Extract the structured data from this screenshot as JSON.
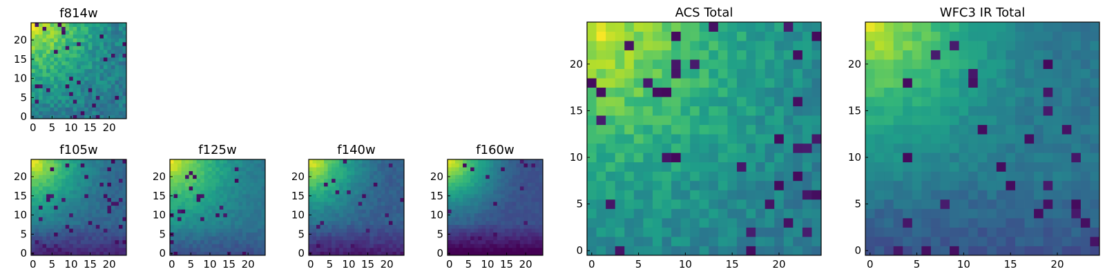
{
  "figure": {
    "background": "#ffffff"
  },
  "colormap": {
    "name": "viridis",
    "stops": [
      "#440154",
      "#482878",
      "#3e4a89",
      "#31688e",
      "#26828e",
      "#1f9e89",
      "#35b779",
      "#6ece58",
      "#b5de2b",
      "#fde725"
    ]
  },
  "chart_data": [
    {
      "type": "heatmap",
      "title": "f814w",
      "grid_size": 25,
      "xlim": [
        0,
        24
      ],
      "ylim": [
        0,
        24
      ],
      "x_ticks": [
        0,
        5,
        10,
        15,
        20
      ],
      "y_ticks": [
        0,
        5,
        10,
        15,
        20
      ],
      "value_range": [
        0,
        1
      ],
      "profile": {
        "corner": 0.95,
        "decay": 1.2,
        "floor": 0.4,
        "noise": 0.2,
        "dark_fraction": 0.04,
        "seed": 11
      }
    },
    {
      "type": "heatmap",
      "title": "f105w",
      "grid_size": 25,
      "xlim": [
        0,
        24
      ],
      "ylim": [
        0,
        24
      ],
      "x_ticks": [
        0,
        5,
        10,
        15,
        20
      ],
      "y_ticks": [
        0,
        5,
        10,
        15,
        20
      ],
      "value_range": [
        0,
        1
      ],
      "profile": {
        "corner": 0.97,
        "decay": 1.5,
        "floor": 0.33,
        "noise": 0.08,
        "bottom_dark": 0.22,
        "dark_fraction": 0.06,
        "seed": 23
      }
    },
    {
      "type": "heatmap",
      "title": "f125w",
      "grid_size": 25,
      "xlim": [
        0,
        24
      ],
      "ylim": [
        0,
        24
      ],
      "x_ticks": [
        0,
        5,
        10,
        15,
        20
      ],
      "y_ticks": [
        0,
        5,
        10,
        15,
        20
      ],
      "value_range": [
        0,
        1
      ],
      "profile": {
        "corner": 0.96,
        "decay": 1.4,
        "floor": 0.4,
        "noise": 0.08,
        "bottom_dark": 0.16,
        "dark_fraction": 0.04,
        "seed": 37
      }
    },
    {
      "type": "heatmap",
      "title": "f140w",
      "grid_size": 25,
      "xlim": [
        0,
        24
      ],
      "ylim": [
        0,
        24
      ],
      "x_ticks": [
        0,
        5,
        10,
        15,
        20
      ],
      "y_ticks": [
        0,
        5,
        10,
        15,
        20
      ],
      "value_range": [
        0,
        1
      ],
      "profile": {
        "corner": 0.97,
        "decay": 1.6,
        "floor": 0.3,
        "noise": 0.08,
        "bottom_dark": 0.22,
        "dark_fraction": 0.04,
        "seed": 41
      }
    },
    {
      "type": "heatmap",
      "title": "f160w",
      "grid_size": 25,
      "xlim": [
        0,
        24
      ],
      "ylim": [
        0,
        24
      ],
      "x_ticks": [
        0,
        5,
        10,
        15,
        20
      ],
      "y_ticks": [
        0,
        5,
        10,
        15,
        20
      ],
      "value_range": [
        0,
        1
      ],
      "profile": {
        "corner": 0.98,
        "decay": 1.7,
        "floor": 0.25,
        "noise": 0.06,
        "bottom_dark": 0.28,
        "dark_fraction": 0.03,
        "seed": 53
      }
    },
    {
      "type": "heatmap",
      "title": "ACS Total",
      "grid_size": 25,
      "xlim": [
        0,
        24
      ],
      "ylim": [
        0,
        24
      ],
      "x_ticks": [
        0,
        5,
        10,
        15,
        20
      ],
      "y_ticks": [
        0,
        5,
        10,
        15,
        20
      ],
      "value_range": [
        0,
        1
      ],
      "profile": {
        "corner": 0.95,
        "decay": 1.1,
        "floor": 0.42,
        "noise": 0.16,
        "dark_fraction": 0.05,
        "seed": 67
      }
    },
    {
      "type": "heatmap",
      "title": "WFC3 IR Total",
      "grid_size": 25,
      "xlim": [
        0,
        24
      ],
      "ylim": [
        0,
        24
      ],
      "x_ticks": [
        0,
        5,
        10,
        15,
        20
      ],
      "y_ticks": [
        0,
        5,
        10,
        15,
        20
      ],
      "value_range": [
        0,
        1
      ],
      "profile": {
        "corner": 0.93,
        "decay": 1.6,
        "floor": 0.4,
        "noise": 0.1,
        "bottom_dark": 0.14,
        "dark_fraction": 0.05,
        "seed": 79
      }
    }
  ]
}
